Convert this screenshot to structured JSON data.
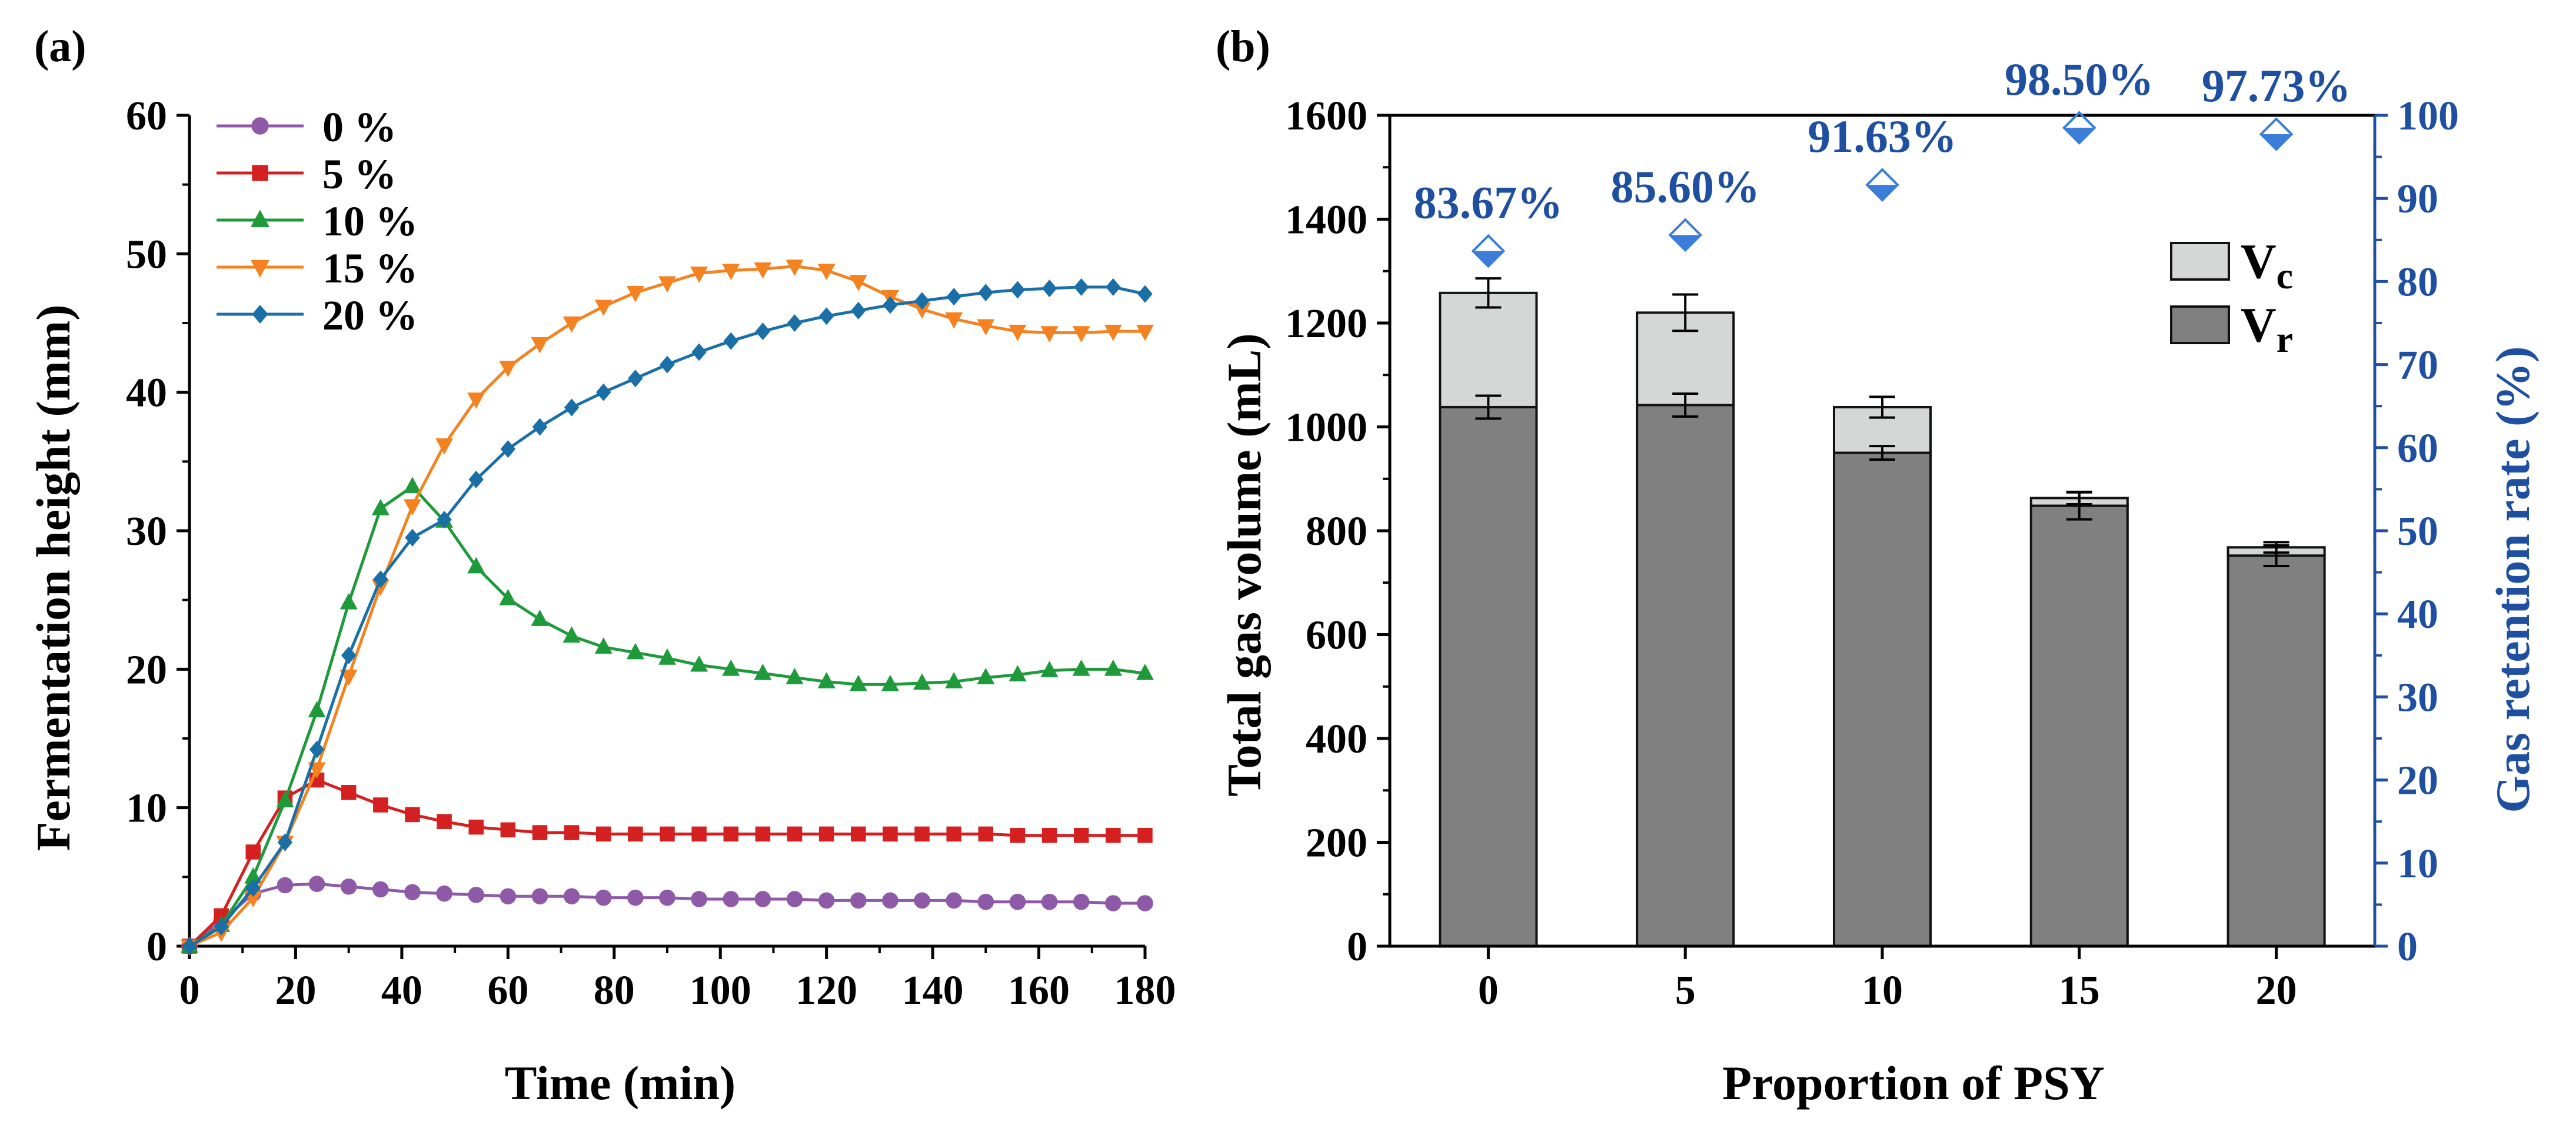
{
  "figure": {
    "colors": {
      "purple": "#8e5aa8",
      "red": "#d42020",
      "green": "#1f9a3a",
      "orange": "#f58220",
      "teal": "#1a6fa6",
      "bar_dark": "#808080",
      "bar_light": "#d5d6d6",
      "right_axis_blue": "#1f4fa0",
      "marker_blue": "#3b7dd8"
    }
  },
  "chart_data": [
    {
      "panel": "(a)",
      "type": "line",
      "title": "",
      "xlabel": "Time (min)",
      "ylabel": "Fermentation height (mm)",
      "xlim": [
        0,
        180
      ],
      "ylim": [
        0,
        60
      ],
      "xticks": [
        "0",
        "20",
        "40",
        "60",
        "80",
        "100",
        "120",
        "140",
        "160",
        "180"
      ],
      "yticks": [
        "0",
        "10",
        "20",
        "30",
        "40",
        "50",
        "60"
      ],
      "grid": false,
      "legend_position": "top-left",
      "x": [
        0,
        6,
        12,
        18,
        24,
        30,
        36,
        42,
        48,
        54,
        60,
        66,
        72,
        78,
        84,
        90,
        96,
        102,
        108,
        114,
        120,
        126,
        132,
        138,
        144,
        150,
        156,
        162,
        168,
        174,
        180
      ],
      "series": [
        {
          "name": "0 %",
          "marker": "circle",
          "color": "#8e5aa8",
          "values": [
            0,
            1.8,
            3.8,
            4.4,
            4.5,
            4.3,
            4.1,
            3.9,
            3.8,
            3.7,
            3.6,
            3.6,
            3.6,
            3.5,
            3.5,
            3.5,
            3.4,
            3.4,
            3.4,
            3.4,
            3.3,
            3.3,
            3.3,
            3.3,
            3.3,
            3.2,
            3.2,
            3.2,
            3.2,
            3.1,
            3.1
          ]
        },
        {
          "name": "5 %",
          "marker": "square",
          "color": "#d42020",
          "values": [
            0,
            2.2,
            6.8,
            10.7,
            12.0,
            11.1,
            10.2,
            9.5,
            9.0,
            8.6,
            8.4,
            8.2,
            8.2,
            8.1,
            8.1,
            8.1,
            8.1,
            8.1,
            8.1,
            8.1,
            8.1,
            8.1,
            8.1,
            8.1,
            8.1,
            8.1,
            8.0,
            8.0,
            8.0,
            8.0,
            8.0
          ]
        },
        {
          "name": "10 %",
          "marker": "triangle-up",
          "color": "#1f9a3a",
          "values": [
            0,
            1.5,
            5.0,
            10.5,
            17.0,
            24.8,
            31.6,
            33.2,
            30.7,
            27.4,
            25.1,
            23.6,
            22.4,
            21.6,
            21.2,
            20.8,
            20.3,
            20.0,
            19.7,
            19.4,
            19.1,
            18.9,
            18.9,
            19.0,
            19.1,
            19.4,
            19.6,
            19.9,
            20.0,
            20.0,
            19.7
          ]
        },
        {
          "name": "15 %",
          "marker": "triangle-down",
          "color": "#f58220",
          "values": [
            0,
            1.0,
            3.5,
            7.5,
            12.8,
            19.5,
            26.0,
            31.8,
            36.2,
            39.5,
            41.8,
            43.5,
            45.0,
            46.2,
            47.2,
            47.9,
            48.6,
            48.8,
            48.9,
            49.1,
            48.8,
            48.0,
            46.9,
            46.0,
            45.3,
            44.8,
            44.4,
            44.3,
            44.3,
            44.4,
            44.4
          ]
        },
        {
          "name": "20 %",
          "marker": "diamond",
          "color": "#1a6fa6",
          "values": [
            0,
            1.4,
            4.2,
            7.5,
            14.2,
            21.0,
            26.5,
            29.5,
            30.8,
            33.7,
            35.9,
            37.5,
            38.9,
            40.0,
            41.0,
            42.0,
            42.9,
            43.7,
            44.4,
            45.0,
            45.5,
            45.9,
            46.3,
            46.6,
            46.9,
            47.2,
            47.4,
            47.5,
            47.6,
            47.6,
            47.1
          ]
        }
      ]
    },
    {
      "panel": "(b)",
      "type": "bar",
      "stacked": true,
      "xlabel": "Proportion of PSY",
      "ylabel": "Total gas volume (mL)",
      "ylabel_right": "Gas retention rate (%)",
      "categories": [
        "0",
        "5",
        "10",
        "15",
        "20"
      ],
      "ylim": [
        0,
        1600
      ],
      "ylim_right": [
        0,
        100
      ],
      "yticks": [
        "0",
        "200",
        "400",
        "600",
        "800",
        "1000",
        "1200",
        "1400",
        "1600"
      ],
      "yticks_right": [
        "0",
        "10",
        "20",
        "30",
        "40",
        "50",
        "60",
        "70",
        "80",
        "90",
        "100"
      ],
      "legend_position": "top-right",
      "legend_main": "V",
      "series": [
        {
          "name": "Vr",
          "sub": "r",
          "color": "#808080",
          "values": [
            1038,
            1042,
            950,
            848,
            752
          ],
          "errors": [
            22,
            22,
            13,
            26,
            20
          ]
        },
        {
          "name": "Vc",
          "sub": "c",
          "color": "#d5d6d6",
          "totals": [
            1258,
            1220,
            1038,
            863,
            768
          ],
          "errors": [
            28,
            35,
            20,
            12,
            10
          ]
        }
      ],
      "retention_rate": {
        "values": [
          83.67,
          85.6,
          91.63,
          98.5,
          97.73
        ],
        "labels": [
          "83.67%",
          "85.60%",
          "91.63%",
          "98.50%",
          "97.73%"
        ],
        "marker": "half-filled-diamond",
        "color": "#3b7dd8"
      }
    }
  ]
}
